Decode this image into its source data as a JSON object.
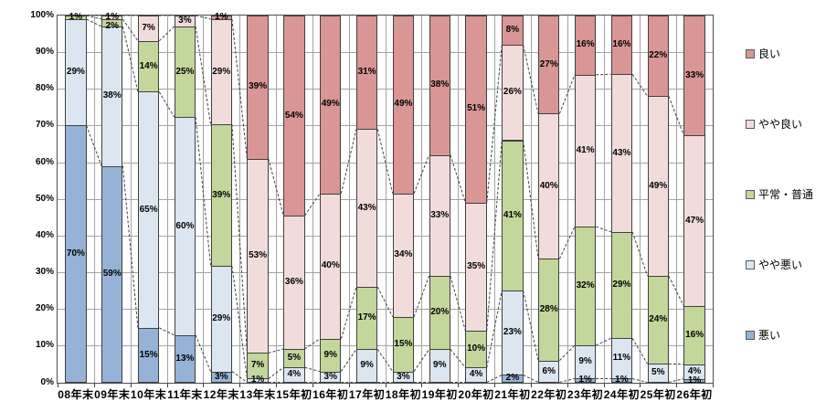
{
  "chart_data": {
    "type": "bar",
    "subtype": "100%-stacked-column-with-series-lines",
    "title": "",
    "xlabel": "",
    "ylabel": "",
    "ylim": [
      0,
      100
    ],
    "grid": "both",
    "legend_position": "right",
    "labels_format": "{value}%",
    "y_ticks": [
      "0%",
      "10%",
      "20%",
      "30%",
      "40%",
      "50%",
      "60%",
      "70%",
      "80%",
      "90%",
      "100%"
    ],
    "categories": [
      "08年末",
      "09年末",
      "10年末",
      "11年末",
      "12年末",
      "13年末",
      "15年初",
      "16年初",
      "17年初",
      "18年初",
      "19年初",
      "20年初",
      "21年初",
      "22年初",
      "23年初",
      "24年初",
      "25年初",
      "26年初"
    ],
    "series": [
      {
        "name": "悪い",
        "color": "#95B3D7",
        "values": [
          70,
          59,
          15,
          13,
          3,
          0,
          0,
          0,
          0,
          0,
          0,
          0,
          2,
          0,
          1,
          1,
          0,
          1
        ]
      },
      {
        "name": "やや悪い",
        "color": "#DCE6F1",
        "values": [
          29,
          38,
          65,
          60,
          29,
          1,
          4,
          3,
          9,
          3,
          9,
          4,
          23,
          6,
          9,
          11,
          5,
          4
        ]
      },
      {
        "name": "平常・普通",
        "color": "#C3D69B",
        "values": [
          1,
          2,
          14,
          25,
          39,
          7,
          5,
          9,
          17,
          15,
          20,
          10,
          41,
          28,
          32,
          29,
          24,
          16
        ]
      },
      {
        "name": "やや良い",
        "color": "#F2DCDB",
        "values": [
          0,
          1,
          7,
          3,
          29,
          53,
          36,
          40,
          43,
          34,
          33,
          35,
          26,
          40,
          41,
          43,
          49,
          47
        ]
      },
      {
        "name": "良い",
        "color": "#D99694",
        "values": [
          0,
          0,
          0,
          0,
          1,
          39,
          54,
          49,
          31,
          49,
          38,
          51,
          8,
          27,
          16,
          16,
          22,
          33
        ]
      }
    ],
    "legend_order_top_to_bottom": [
      "良い",
      "やや良い",
      "平常・普通",
      "やや悪い",
      "悪い"
    ],
    "series_line_style": "dashed",
    "colors": {
      "grid": "#a3a3a3",
      "plot_border": "#4d4d4d",
      "segment_border": "#404040",
      "series_line": "#404040",
      "text": "#000000",
      "background": "#ffffff"
    }
  }
}
